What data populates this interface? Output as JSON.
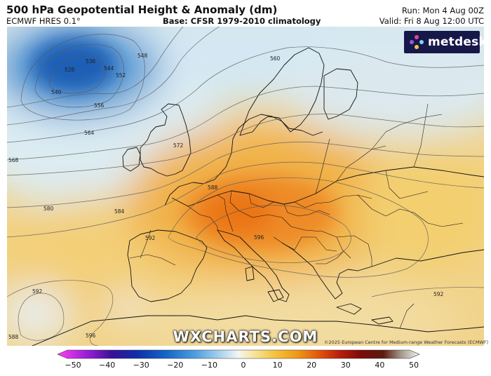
{
  "header": {
    "title": "500 hPa Geopotential Height & Anomaly (dm)",
    "model": "ECMWF HRES 0.1°",
    "base": "Base: CFSR 1979-2010 climatology",
    "run": "Run: Mon 4 Aug 00Z",
    "valid": "Valid: Fri 8 Aug 12:00 UTC"
  },
  "logo": {
    "text": "metdesk",
    "colors": [
      "#e84393",
      "#7ed6f2",
      "#f5c542",
      "#9b59d0"
    ]
  },
  "map": {
    "contour_labels": [
      {
        "id": "c528",
        "text": "528"
      },
      {
        "id": "c536",
        "text": "536"
      },
      {
        "id": "c540",
        "text": "540"
      },
      {
        "id": "c544",
        "text": "544"
      },
      {
        "id": "c548",
        "text": "548"
      },
      {
        "id": "c552",
        "text": "552"
      },
      {
        "id": "c556",
        "text": "556"
      },
      {
        "id": "c560",
        "text": "560"
      },
      {
        "id": "c564",
        "text": "564"
      },
      {
        "id": "c568",
        "text": "568"
      },
      {
        "id": "c572",
        "text": "572"
      },
      {
        "id": "c580",
        "text": "580"
      },
      {
        "id": "c584",
        "text": "584"
      },
      {
        "id": "c588a",
        "text": "588"
      },
      {
        "id": "c588b",
        "text": "588"
      },
      {
        "id": "c592a",
        "text": "592"
      },
      {
        "id": "c592b",
        "text": "592"
      },
      {
        "id": "c592c",
        "text": "592"
      },
      {
        "id": "c596a",
        "text": "596"
      },
      {
        "id": "c596b",
        "text": "596"
      }
    ],
    "watermark": "WXCHARTS.COM",
    "copyright": "©2025 European Centre for Medium-range Weather Forecasts (ECMWF)"
  },
  "colorbar": {
    "min": -50,
    "max": 50,
    "labels": [
      "−50",
      "−40",
      "−30",
      "−20",
      "−10",
      "0",
      "10",
      "20",
      "30",
      "40",
      "50"
    ],
    "stops": [
      {
        "v": -50,
        "c": "#ff3ff0"
      },
      {
        "v": -42,
        "c": "#9a1fd8"
      },
      {
        "v": -35,
        "c": "#3a1098"
      },
      {
        "v": -28,
        "c": "#0f2fa8"
      },
      {
        "v": -20,
        "c": "#1565c8"
      },
      {
        "v": -12,
        "c": "#4e9ee0"
      },
      {
        "v": -5,
        "c": "#a9d3ee"
      },
      {
        "v": 0,
        "c": "#f4f6f2"
      },
      {
        "v": 4,
        "c": "#f7e5a0"
      },
      {
        "v": 10,
        "c": "#f3c440"
      },
      {
        "v": 16,
        "c": "#ef9a18"
      },
      {
        "v": 22,
        "c": "#e3580c"
      },
      {
        "v": 28,
        "c": "#b81e0c"
      },
      {
        "v": 34,
        "c": "#7a0a0a"
      },
      {
        "v": 40,
        "c": "#5b1a10"
      },
      {
        "v": 45,
        "c": "#a59a8c"
      },
      {
        "v": 50,
        "c": "#f2f2f2"
      }
    ]
  }
}
